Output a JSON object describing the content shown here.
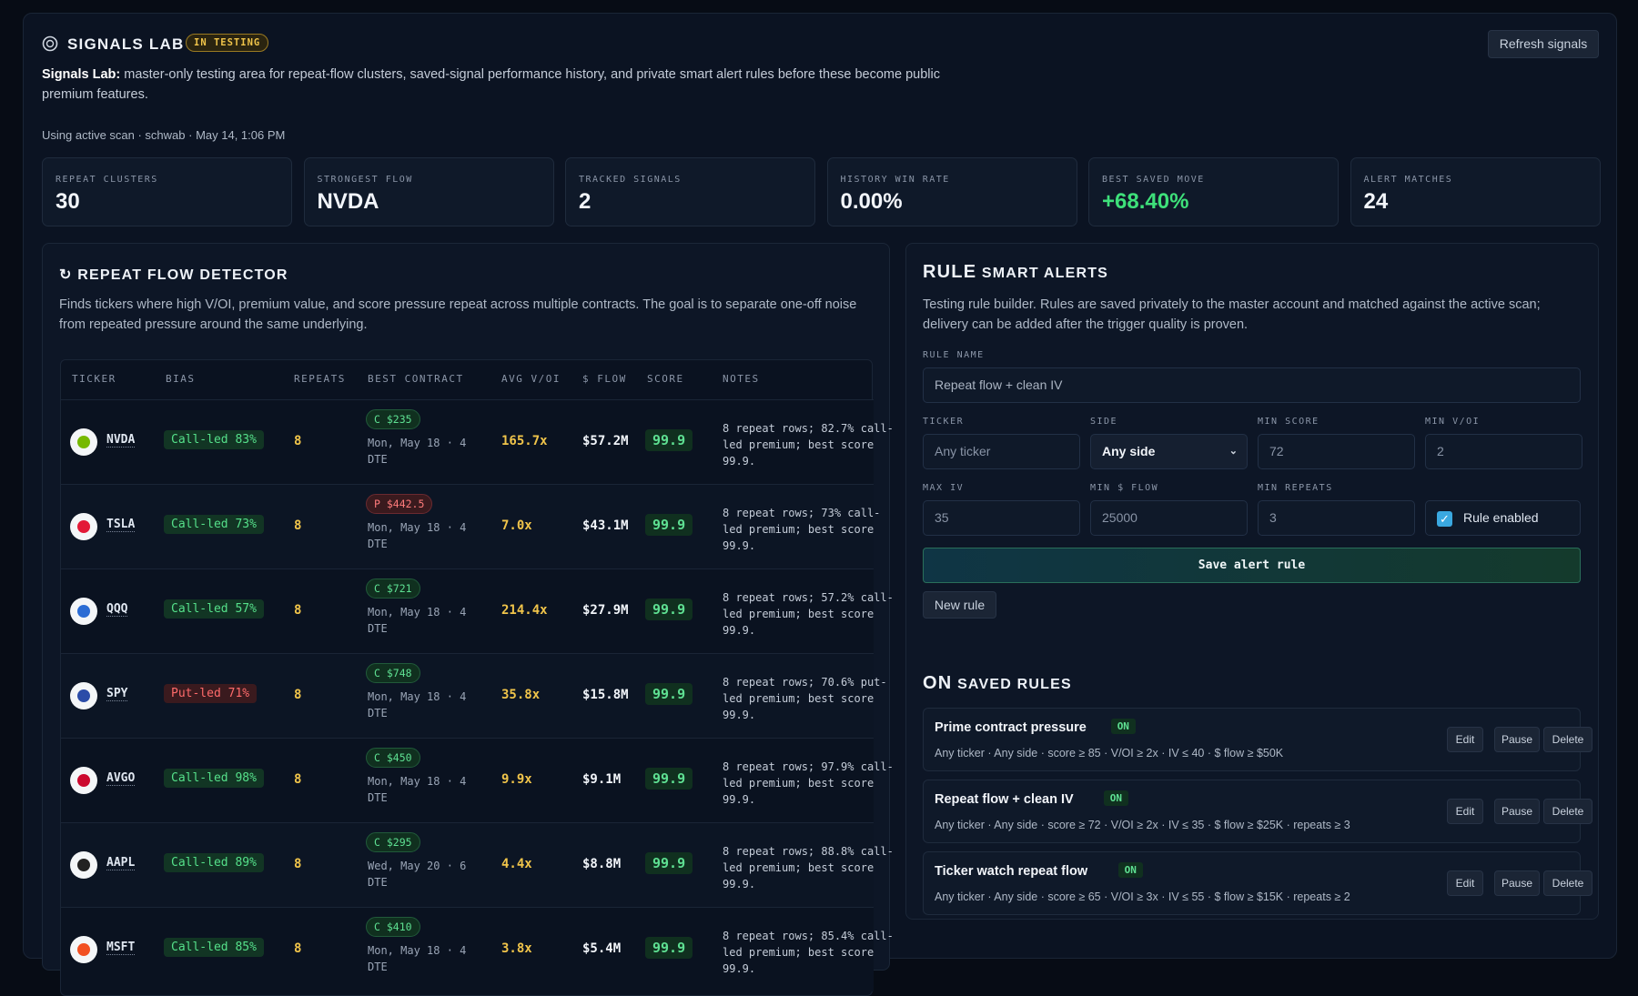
{
  "header": {
    "title": "SIGNALS LAB",
    "badge": "IN TESTING",
    "button": "Refresh signals"
  },
  "intro": {
    "lead": "Signals Lab:",
    "text": "master-only testing area for repeat-flow clusters, saved-signal performance history, and private smart alert rules before these become public premium features."
  },
  "scan_info": "Using active scan · schwab · May 14, 1:06 PM",
  "stats": [
    {
      "label": "REPEAT CLUSTERS",
      "value": "30"
    },
    {
      "label": "STRONGEST FLOW",
      "value": "NVDA"
    },
    {
      "label": "TRACKED SIGNALS",
      "value": "2"
    },
    {
      "label": "HISTORY WIN RATE",
      "value": "0.00%"
    },
    {
      "label": "BEST SAVED MOVE",
      "value": "+68.40%"
    },
    {
      "label": "ALERT MATCHES",
      "value": "24"
    }
  ],
  "detector": {
    "title": "REPEAT FLOW DETECTOR",
    "description": "Finds tickers where high V/OI, premium value, and score pressure repeat across multiple contracts. The goal is to separate one-off noise from repeated pressure around the same underlying.",
    "columns": [
      "TICKER",
      "BIAS",
      "REPEATS",
      "BEST CONTRACT",
      "AVG V/OI",
      "$ FLOW",
      "SCORE",
      "NOTES"
    ],
    "rows": [
      {
        "ticker": "NVDA",
        "bias": "Call-led 83%",
        "repeats": "8",
        "contract": "C $235",
        "expiry": "Mon, May 18 · 4 DTE",
        "avg_voi": "165.7x",
        "flow": "$57.2M",
        "score": "99.9",
        "notes": "8 repeat rows; 82.7% call-led premium; best score 99.9."
      },
      {
        "ticker": "TSLA",
        "bias": "Call-led 73%",
        "repeats": "8",
        "contract": "P $442.5",
        "expiry": "Mon, May 18 · 4 DTE",
        "avg_voi": "7.0x",
        "flow": "$43.1M",
        "score": "99.9",
        "notes": "8 repeat rows; 73% call-led premium; best score 99.9."
      },
      {
        "ticker": "QQQ",
        "bias": "Call-led 57%",
        "repeats": "8",
        "contract": "C $721",
        "expiry": "Mon, May 18 · 4 DTE",
        "avg_voi": "214.4x",
        "flow": "$27.9M",
        "score": "99.9",
        "notes": "8 repeat rows; 57.2% call-led premium; best score 99.9."
      },
      {
        "ticker": "SPY",
        "bias": "Put-led 71%",
        "repeats": "8",
        "contract": "C $748",
        "expiry": "Mon, May 18 · 4 DTE",
        "avg_voi": "35.8x",
        "flow": "$15.8M",
        "score": "99.9",
        "notes": "8 repeat rows; 70.6% put-led premium; best score 99.9."
      },
      {
        "ticker": "AVGO",
        "bias": "Call-led 98%",
        "repeats": "8",
        "contract": "C $450",
        "expiry": "Mon, May 18 · 4 DTE",
        "avg_voi": "9.9x",
        "flow": "$9.1M",
        "score": "99.9",
        "notes": "8 repeat rows; 97.9% call-led premium; best score 99.9."
      },
      {
        "ticker": "AAPL",
        "bias": "Call-led 89%",
        "repeats": "8",
        "contract": "C $295",
        "expiry": "Wed, May 20 · 6 DTE",
        "avg_voi": "4.4x",
        "flow": "$8.8M",
        "score": "99.9",
        "notes": "8 repeat rows; 88.8% call-led premium; best score 99.9."
      },
      {
        "ticker": "MSFT",
        "bias": "Call-led 85%",
        "repeats": "8",
        "contract": "C $410",
        "expiry": "Mon, May 18 · 4 DTE",
        "avg_voi": "3.8x",
        "flow": "$5.4M",
        "score": "99.9",
        "notes": "8 repeat rows; 85.4% call-led premium; best score 99.9."
      }
    ]
  },
  "alerts": {
    "icon_text": "RULE",
    "title": "SMART ALERTS",
    "description": "Testing rule builder. Rules are saved privately to the master account and matched against the active scan; delivery can be added after the trigger quality is proven.",
    "rule_name": {
      "label": "RULE NAME",
      "value": "Repeat flow + clean IV"
    },
    "fields": [
      {
        "label": "TICKER",
        "value": "Any ticker"
      },
      {
        "label": "SIDE",
        "value": "Any side"
      },
      {
        "label": "MIN SCORE",
        "value": "72"
      },
      {
        "label": "MIN V/OI",
        "value": "2"
      },
      {
        "label": "MAX IV",
        "value": "35"
      },
      {
        "label": "MIN $ FLOW",
        "value": "25000"
      },
      {
        "label": "MIN REPEATS",
        "value": "3"
      }
    ],
    "enabled_label": "Rule enabled",
    "save_button": "Save alert rule",
    "new_button": "New rule"
  },
  "saved": {
    "icon_text": "ON",
    "title": "SAVED RULES",
    "actions": [
      "Edit",
      "Pause",
      "Delete"
    ],
    "rules": [
      {
        "name": "Prime contract pressure",
        "status": "ON",
        "details": "Any ticker · Any side · score ≥ 85 · V/OI ≥ 2x · IV ≤ 40 · $ flow ≥ $50K"
      },
      {
        "name": "Repeat flow + clean IV",
        "status": "ON",
        "details": "Any ticker · Any side · score ≥ 72 · V/OI ≥ 2x · IV ≤ 35 · $ flow ≥ $25K · repeats ≥ 3"
      },
      {
        "name": "Ticker watch repeat flow",
        "status": "ON",
        "details": "Any ticker · Any side · score ≥ 65 · V/OI ≥ 3x · IV ≤ 55 · $ flow ≥ $15K · repeats ≥ 2"
      }
    ]
  }
}
